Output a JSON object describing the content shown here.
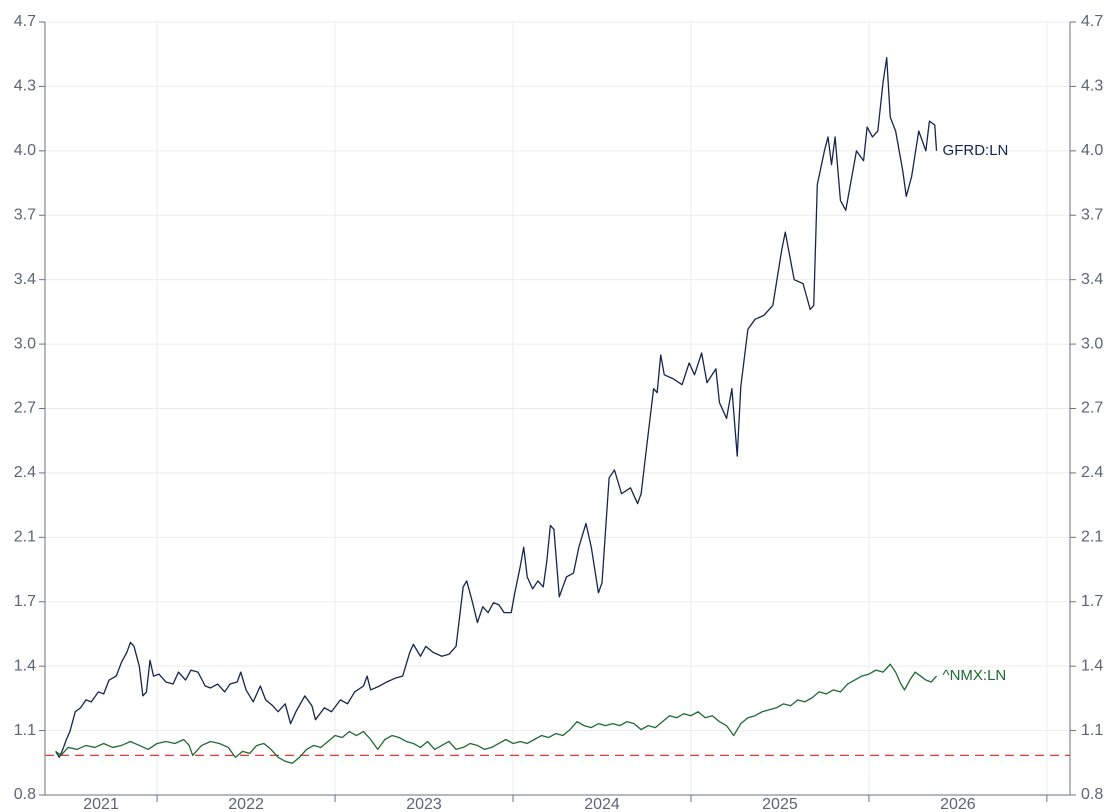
{
  "chart_data": {
    "type": "line",
    "xlim": [
      2021.37,
      2027.13
    ],
    "xticks": [
      2022,
      2023,
      2024,
      2025,
      2026,
      2027
    ],
    "year_labels": [
      2021,
      2022,
      2023,
      2024,
      2025,
      2026
    ],
    "ylim": [
      0.8,
      4.7
    ],
    "yticks": [
      {
        "value": 0.8,
        "label": "0.8"
      },
      {
        "value": 1.125,
        "label": "1.1"
      },
      {
        "value": 1.45,
        "label": "1.4"
      },
      {
        "value": 1.775,
        "label": "1.7"
      },
      {
        "value": 2.1,
        "label": "2.1"
      },
      {
        "value": 2.425,
        "label": "2.4"
      },
      {
        "value": 2.75,
        "label": "2.7"
      },
      {
        "value": 3.075,
        "label": "3.0"
      },
      {
        "value": 3.4,
        "label": "3.4"
      },
      {
        "value": 3.725,
        "label": "3.7"
      },
      {
        "value": 4.05,
        "label": "4.0"
      },
      {
        "value": 4.375,
        "label": "4.3"
      },
      {
        "value": 4.7,
        "label": "4.7"
      }
    ],
    "grid": true,
    "reference_line": {
      "value": 1.0,
      "color": "#e53935"
    },
    "series": [
      {
        "name": "GFRD:LN",
        "color": "#14264f",
        "x": [
          2021.43,
          2021.45,
          2021.47,
          2021.49,
          2021.51,
          2021.54,
          2021.57,
          2021.6,
          2021.63,
          2021.67,
          2021.7,
          2021.73,
          2021.77,
          2021.8,
          2021.83,
          2021.85,
          2021.87,
          2021.9,
          2021.92,
          2021.94,
          2021.96,
          2021.98,
          2022.01,
          2022.05,
          2022.09,
          2022.12,
          2022.16,
          2022.19,
          2022.23,
          2022.27,
          2022.3,
          2022.34,
          2022.38,
          2022.41,
          2022.45,
          2022.47,
          2022.5,
          2022.54,
          2022.58,
          2022.61,
          2022.65,
          2022.68,
          2022.72,
          2022.75,
          2022.78,
          2022.83,
          2022.87,
          2022.89,
          2022.94,
          2022.98,
          2023.03,
          2023.07,
          2023.11,
          2023.16,
          2023.18,
          2023.2,
          2023.25,
          2023.29,
          2023.34,
          2023.38,
          2023.42,
          2023.44,
          2023.48,
          2023.51,
          2023.55,
          2023.6,
          2023.64,
          2023.68,
          2023.72,
          2023.74,
          2023.77,
          2023.8,
          2023.83,
          2023.86,
          2023.89,
          2023.92,
          2023.95,
          2023.99,
          2024.01,
          2024.04,
          2024.06,
          2024.08,
          2024.11,
          2024.14,
          2024.17,
          2024.19,
          2024.21,
          2024.23,
          2024.26,
          2024.3,
          2024.34,
          2024.37,
          2024.41,
          2024.44,
          2024.48,
          2024.5,
          2024.54,
          2024.57,
          2024.61,
          2024.66,
          2024.7,
          2024.72,
          2024.75,
          2024.79,
          2024.81,
          2024.83,
          2024.85,
          2024.9,
          2024.95,
          2024.99,
          2025.02,
          2025.06,
          2025.09,
          2025.14,
          2025.16,
          2025.2,
          2025.23,
          2025.26,
          2025.28,
          2025.32,
          2025.36,
          2025.41,
          2025.46,
          2025.51,
          2025.53,
          2025.58,
          2025.63,
          2025.67,
          2025.69,
          2025.71,
          2025.75,
          2025.77,
          2025.79,
          2025.81,
          2025.84,
          2025.87,
          2025.9,
          2025.93,
          2025.97,
          2025.99,
          2026.02,
          2026.05,
          2026.08,
          2026.1,
          2026.12,
          2026.15,
          2026.19,
          2026.21,
          2026.24,
          2026.28,
          2026.32,
          2026.34,
          2026.37,
          2026.38
        ],
        "values": [
          1.02,
          0.99,
          1.03,
          1.08,
          1.12,
          1.22,
          1.24,
          1.28,
          1.27,
          1.32,
          1.31,
          1.38,
          1.4,
          1.47,
          1.52,
          1.57,
          1.55,
          1.45,
          1.3,
          1.32,
          1.48,
          1.4,
          1.41,
          1.37,
          1.36,
          1.42,
          1.38,
          1.43,
          1.42,
          1.35,
          1.34,
          1.36,
          1.32,
          1.36,
          1.37,
          1.42,
          1.33,
          1.27,
          1.35,
          1.28,
          1.25,
          1.22,
          1.26,
          1.16,
          1.22,
          1.3,
          1.25,
          1.18,
          1.24,
          1.22,
          1.28,
          1.26,
          1.32,
          1.35,
          1.4,
          1.33,
          1.35,
          1.37,
          1.39,
          1.4,
          1.52,
          1.56,
          1.5,
          1.55,
          1.52,
          1.5,
          1.51,
          1.55,
          1.85,
          1.88,
          1.78,
          1.67,
          1.75,
          1.72,
          1.77,
          1.76,
          1.72,
          1.72,
          1.82,
          1.95,
          2.05,
          1.9,
          1.84,
          1.88,
          1.85,
          1.98,
          2.16,
          2.14,
          1.8,
          1.9,
          1.92,
          2.05,
          2.17,
          2.05,
          1.82,
          1.87,
          2.4,
          2.44,
          2.32,
          2.35,
          2.27,
          2.32,
          2.55,
          2.85,
          2.83,
          3.02,
          2.92,
          2.9,
          2.87,
          2.98,
          2.92,
          3.03,
          2.88,
          2.95,
          2.78,
          2.7,
          2.85,
          2.51,
          2.86,
          3.15,
          3.2,
          3.22,
          3.27,
          3.55,
          3.64,
          3.4,
          3.38,
          3.25,
          3.27,
          3.88,
          4.05,
          4.12,
          3.98,
          4.12,
          3.8,
          3.75,
          3.9,
          4.05,
          4.0,
          4.17,
          4.12,
          4.15,
          4.4,
          4.52,
          4.22,
          4.15,
          3.95,
          3.82,
          3.92,
          4.15,
          4.05,
          4.2,
          4.18,
          4.05
        ]
      },
      {
        "name": "^NMX:LN",
        "color": "#1e6b30",
        "x": [
          2021.43,
          2021.46,
          2021.5,
          2021.55,
          2021.6,
          2021.65,
          2021.7,
          2021.75,
          2021.8,
          2021.85,
          2021.9,
          2021.95,
          2022.0,
          2022.05,
          2022.1,
          2022.15,
          2022.18,
          2022.2,
          2022.25,
          2022.3,
          2022.35,
          2022.4,
          2022.44,
          2022.48,
          2022.52,
          2022.56,
          2022.6,
          2022.64,
          2022.68,
          2022.72,
          2022.76,
          2022.8,
          2022.84,
          2022.88,
          2022.92,
          2022.96,
          2023.0,
          2023.04,
          2023.08,
          2023.12,
          2023.16,
          2023.2,
          2023.24,
          2023.28,
          2023.32,
          2023.36,
          2023.4,
          2023.44,
          2023.48,
          2023.52,
          2023.56,
          2023.6,
          2023.64,
          2023.68,
          2023.72,
          2023.76,
          2023.8,
          2023.84,
          2023.88,
          2023.92,
          2023.96,
          2024.0,
          2024.04,
          2024.08,
          2024.12,
          2024.16,
          2024.2,
          2024.24,
          2024.28,
          2024.32,
          2024.36,
          2024.4,
          2024.44,
          2024.48,
          2024.52,
          2024.56,
          2024.6,
          2024.64,
          2024.68,
          2024.72,
          2024.76,
          2024.8,
          2024.84,
          2024.88,
          2024.92,
          2024.96,
          2025.0,
          2025.04,
          2025.08,
          2025.12,
          2025.16,
          2025.2,
          2025.24,
          2025.28,
          2025.32,
          2025.36,
          2025.4,
          2025.44,
          2025.48,
          2025.52,
          2025.56,
          2025.6,
          2025.64,
          2025.68,
          2025.72,
          2025.76,
          2025.8,
          2025.84,
          2025.88,
          2025.92,
          2025.96,
          2026.0,
          2026.04,
          2026.08,
          2026.12,
          2026.15,
          2026.18,
          2026.2,
          2026.23,
          2026.26,
          2026.29,
          2026.32,
          2026.35,
          2026.38
        ],
        "values": [
          1.02,
          1.0,
          1.04,
          1.03,
          1.05,
          1.04,
          1.06,
          1.04,
          1.05,
          1.07,
          1.05,
          1.03,
          1.06,
          1.07,
          1.06,
          1.08,
          1.05,
          1.0,
          1.05,
          1.07,
          1.06,
          1.04,
          0.99,
          1.02,
          1.01,
          1.05,
          1.06,
          1.03,
          0.99,
          0.97,
          0.96,
          0.99,
          1.03,
          1.05,
          1.04,
          1.07,
          1.1,
          1.09,
          1.12,
          1.1,
          1.12,
          1.08,
          1.03,
          1.08,
          1.1,
          1.09,
          1.07,
          1.06,
          1.04,
          1.07,
          1.03,
          1.05,
          1.07,
          1.03,
          1.04,
          1.06,
          1.05,
          1.03,
          1.04,
          1.06,
          1.08,
          1.06,
          1.07,
          1.06,
          1.08,
          1.1,
          1.09,
          1.11,
          1.1,
          1.13,
          1.17,
          1.15,
          1.14,
          1.16,
          1.15,
          1.16,
          1.15,
          1.17,
          1.16,
          1.13,
          1.15,
          1.14,
          1.17,
          1.2,
          1.19,
          1.21,
          1.2,
          1.22,
          1.19,
          1.2,
          1.17,
          1.15,
          1.1,
          1.16,
          1.19,
          1.2,
          1.22,
          1.23,
          1.24,
          1.26,
          1.25,
          1.28,
          1.27,
          1.29,
          1.32,
          1.31,
          1.33,
          1.32,
          1.36,
          1.38,
          1.4,
          1.41,
          1.43,
          1.42,
          1.46,
          1.42,
          1.36,
          1.33,
          1.38,
          1.42,
          1.4,
          1.38,
          1.37,
          1.4
        ]
      }
    ]
  }
}
